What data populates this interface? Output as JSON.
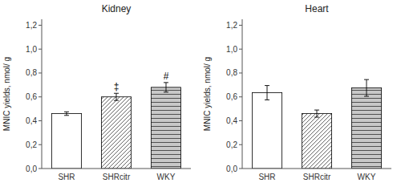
{
  "chart_data": [
    {
      "type": "bar",
      "title": "Kidney",
      "categories": [
        "SHR",
        "SHRcitr",
        "WKY"
      ],
      "values": [
        0.46,
        0.6,
        0.68
      ],
      "errors": [
        0.015,
        0.03,
        0.04
      ],
      "annotations": [
        null,
        "‡",
        "#"
      ],
      "colors": [
        "#ffffff",
        "#ffffff",
        "#c8c8c8"
      ],
      "ylabel": "MNIC yields, nmol/ g",
      "ylim": [
        0.0,
        1.25
      ],
      "yticks": [
        {
          "value": 0.0,
          "label": "0,0"
        },
        {
          "value": 0.2,
          "label": "0,2"
        },
        {
          "value": 0.4,
          "label": "0,4"
        },
        {
          "value": 0.6,
          "label": "0,6"
        },
        {
          "value": 0.8,
          "label": "0,8"
        },
        {
          "value": 1.0,
          "label": "1,0"
        },
        {
          "value": 1.2,
          "label": "1,2"
        }
      ]
    },
    {
      "type": "bar",
      "title": "Heart",
      "categories": [
        "SHR",
        "SHRcitr",
        "WKY"
      ],
      "values": [
        0.635,
        0.46,
        0.675
      ],
      "errors": [
        0.06,
        0.03,
        0.07
      ],
      "colors": [
        "#ffffff",
        "#ffffff",
        "#c8c8c8"
      ],
      "ylabel": "MNIC yields, nmol/ g",
      "ylim": [
        0.0,
        1.25
      ],
      "yticks": [
        {
          "value": 0.0,
          "label": "0,0"
        },
        {
          "value": 0.2,
          "label": "0,2"
        },
        {
          "value": 0.4,
          "label": "0,4"
        },
        {
          "value": 0.6,
          "label": "0,6"
        },
        {
          "value": 0.8,
          "label": "0,8"
        },
        {
          "value": 1.0,
          "label": "1,0"
        },
        {
          "value": 1.2,
          "label": "1,2"
        }
      ]
    }
  ]
}
